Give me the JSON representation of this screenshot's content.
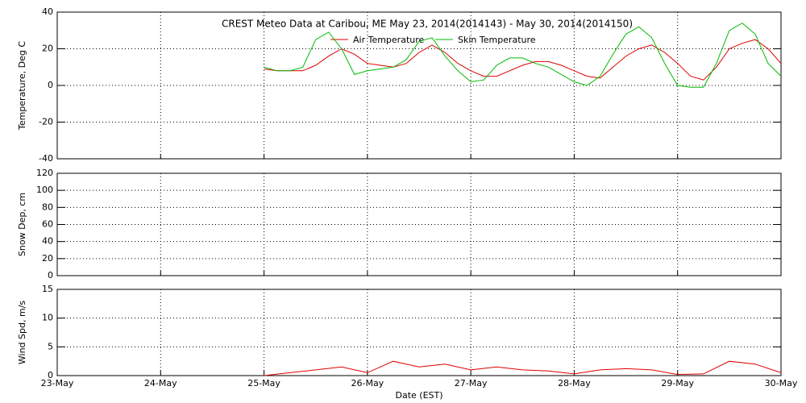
{
  "chart_data": [
    {
      "type": "line",
      "title": "CREST Meteo Data at Caribou, ME    May 23, 2014(2014143) - May 30, 2014(2014150)",
      "ylabel": "Temperature, Deg C",
      "ylim": [
        -40,
        40
      ],
      "yticks": [
        -40,
        -20,
        0,
        20,
        40
      ],
      "grid": true,
      "series": [
        {
          "name": "Air Temperature",
          "color": "#dd0000",
          "x": [
            25,
            25.125,
            25.25,
            25.375,
            25.5,
            25.625,
            25.75,
            25.875,
            26,
            26.125,
            26.25,
            26.375,
            26.5,
            26.625,
            26.75,
            26.875,
            27,
            27.125,
            27.25,
            27.375,
            27.5,
            27.625,
            27.75,
            27.875,
            28,
            28.125,
            28.25,
            28.375,
            28.5,
            28.625,
            28.75,
            28.875,
            29,
            29.125,
            29.25,
            29.375,
            29.5,
            29.625,
            29.75,
            29.875,
            30
          ],
          "values": [
            9,
            8,
            8,
            8,
            11,
            16,
            20,
            17,
            12,
            11,
            10,
            12,
            18,
            22,
            18,
            12,
            8,
            5,
            5,
            8,
            11,
            13,
            13,
            11,
            8,
            5,
            4,
            10,
            16,
            20,
            22,
            18,
            12,
            5,
            3,
            10,
            20,
            23,
            25,
            20,
            12
          ]
        },
        {
          "name": "Skin Temperature",
          "color": "#00bb00",
          "x": [
            25,
            25.125,
            25.25,
            25.375,
            25.5,
            25.625,
            25.75,
            25.875,
            26,
            26.125,
            26.25,
            26.375,
            26.5,
            26.625,
            26.75,
            26.875,
            27,
            27.125,
            27.25,
            27.375,
            27.5,
            27.625,
            27.75,
            27.875,
            28,
            28.125,
            28.25,
            28.375,
            28.5,
            28.625,
            28.75,
            28.875,
            29,
            29.125,
            29.25,
            29.375,
            29.5,
            29.625,
            29.75,
            29.875,
            30
          ],
          "values": [
            10,
            8,
            8,
            10,
            25,
            29,
            20,
            6,
            8,
            9,
            10,
            14,
            24,
            26,
            16,
            8,
            2,
            3,
            11,
            15,
            15,
            12,
            10,
            6,
            2,
            0,
            5,
            17,
            28,
            32,
            26,
            12,
            0,
            -1,
            -1,
            12,
            30,
            34,
            28,
            12,
            5
          ]
        }
      ]
    },
    {
      "type": "line",
      "ylabel": "Snow Dep, cm",
      "ylim": [
        0,
        120
      ],
      "yticks": [
        0,
        20,
        40,
        60,
        80,
        100,
        120
      ],
      "grid": true
    },
    {
      "type": "line",
      "ylabel": "Wind Spd, m/s",
      "xlabel": "Date (EST)",
      "xlim": [
        23,
        30
      ],
      "xticks": [
        {
          "value": 23,
          "label": "23-May"
        },
        {
          "value": 24,
          "label": "24-May"
        },
        {
          "value": 25,
          "label": "25-May"
        },
        {
          "value": 26,
          "label": "26-May"
        },
        {
          "value": 27,
          "label": "27-May"
        },
        {
          "value": 28,
          "label": "28-May"
        },
        {
          "value": 29,
          "label": "29-May"
        },
        {
          "value": 30,
          "label": "30-May"
        }
      ],
      "ylim": [
        0,
        15
      ],
      "yticks": [
        0,
        5,
        10,
        15
      ],
      "grid": true,
      "series": [
        {
          "color": "#dd0000",
          "x": [
            25,
            25.25,
            25.5,
            25.75,
            26,
            26.25,
            26.5,
            26.75,
            27,
            27.25,
            27.5,
            27.75,
            28,
            28.25,
            28.5,
            28.75,
            29,
            29.25,
            29.5,
            29.75,
            30
          ],
          "values": [
            0,
            0.5,
            1,
            1.5,
            0.5,
            2.5,
            1.5,
            2,
            1,
            1.5,
            1,
            0.8,
            0.3,
            1,
            1.2,
            1,
            0.2,
            0.3,
            2.5,
            2,
            0.5
          ]
        }
      ]
    }
  ]
}
